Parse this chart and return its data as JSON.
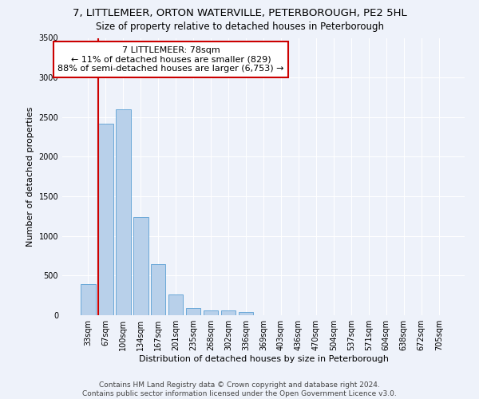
{
  "title": "7, LITTLEMEER, ORTON WATERVILLE, PETERBOROUGH, PE2 5HL",
  "subtitle": "Size of property relative to detached houses in Peterborough",
  "xlabel": "Distribution of detached houses by size in Peterborough",
  "ylabel": "Number of detached properties",
  "footer": "Contains HM Land Registry data © Crown copyright and database right 2024.\nContains public sector information licensed under the Open Government Licence v3.0.",
  "bar_labels": [
    "33sqm",
    "67sqm",
    "100sqm",
    "134sqm",
    "167sqm",
    "201sqm",
    "235sqm",
    "268sqm",
    "302sqm",
    "336sqm",
    "369sqm",
    "403sqm",
    "436sqm",
    "470sqm",
    "504sqm",
    "537sqm",
    "571sqm",
    "604sqm",
    "638sqm",
    "672sqm",
    "705sqm"
  ],
  "bar_values": [
    390,
    2420,
    2600,
    1240,
    640,
    260,
    95,
    60,
    60,
    45,
    0,
    0,
    0,
    0,
    0,
    0,
    0,
    0,
    0,
    0,
    0
  ],
  "bar_color": "#b8d0ea",
  "bar_edge_color": "#5a9fd4",
  "annotation_title": "7 LITTLEMEER: 78sqm",
  "annotation_line1": "← 11% of detached houses are smaller (829)",
  "annotation_line2": "88% of semi-detached houses are larger (6,753) →",
  "annotation_box_facecolor": "#ffffff",
  "annotation_box_edgecolor": "#cc0000",
  "red_line_bar_index": 1,
  "ylim": [
    0,
    3500
  ],
  "yticks": [
    0,
    500,
    1000,
    1500,
    2000,
    2500,
    3000,
    3500
  ],
  "title_fontsize": 9.5,
  "subtitle_fontsize": 8.5,
  "xlabel_fontsize": 8,
  "ylabel_fontsize": 8,
  "annotation_fontsize": 8,
  "footer_fontsize": 6.5,
  "tick_fontsize": 7,
  "background_color": "#eef2fa",
  "grid_color": "#ffffff"
}
